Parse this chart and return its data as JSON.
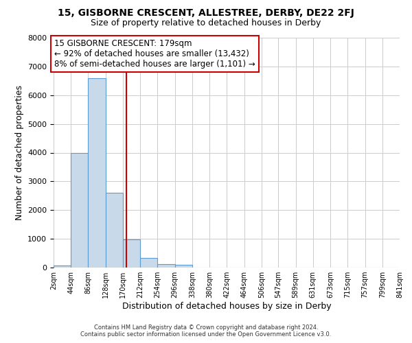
{
  "title1": "15, GISBORNE CRESCENT, ALLESTREE, DERBY, DE22 2FJ",
  "title2": "Size of property relative to detached houses in Derby",
  "xlabel": "Distribution of detached houses by size in Derby",
  "ylabel": "Number of detached properties",
  "bin_edges": [
    2,
    44,
    86,
    128,
    170,
    212,
    254,
    296,
    338,
    380,
    422,
    464,
    506,
    547,
    589,
    631,
    673,
    715,
    757,
    799,
    841
  ],
  "bin_counts": [
    60,
    4000,
    6600,
    2600,
    980,
    330,
    130,
    90,
    0,
    0,
    0,
    0,
    0,
    0,
    0,
    0,
    0,
    0,
    0,
    0
  ],
  "bar_color": "#c8daea",
  "bar_edge_color": "#5b9bd5",
  "property_size": 179,
  "vline_color": "#cc0000",
  "annotation_title": "15 GISBORNE CRESCENT: 179sqm",
  "annotation_line1": "← 92% of detached houses are smaller (13,432)",
  "annotation_line2": "8% of semi-detached houses are larger (1,101) →",
  "annotation_box_color": "#ffffff",
  "annotation_box_edge_color": "#cc0000",
  "ylim": [
    0,
    8000
  ],
  "yticks": [
    0,
    1000,
    2000,
    3000,
    4000,
    5000,
    6000,
    7000,
    8000
  ],
  "footer1": "Contains HM Land Registry data © Crown copyright and database right 2024.",
  "footer2": "Contains public sector information licensed under the Open Government Licence v3.0.",
  "background_color": "#ffffff",
  "grid_color": "#cccccc"
}
